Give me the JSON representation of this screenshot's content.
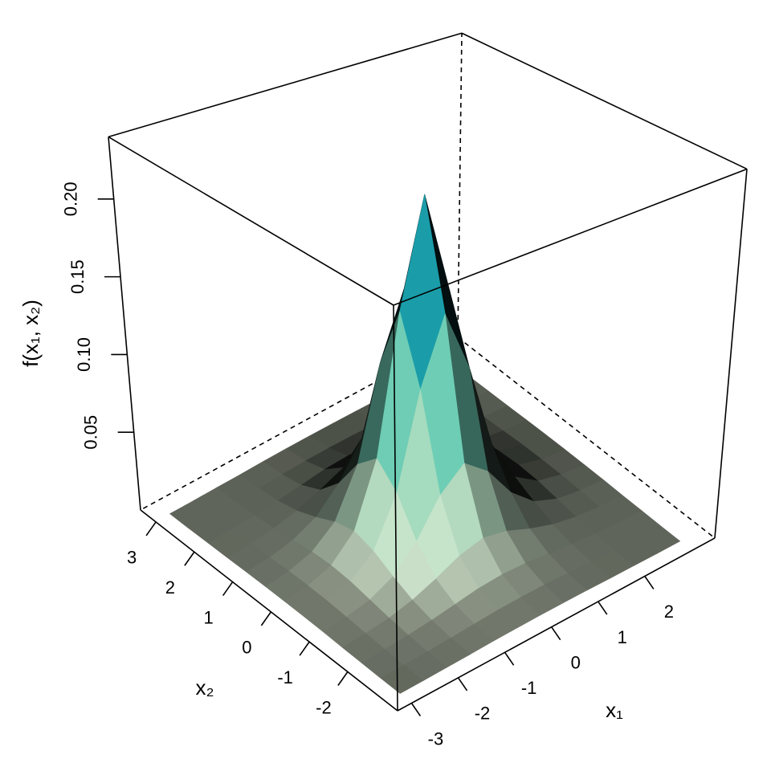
{
  "chart_data": {
    "type": "surface",
    "x_label": "x₁",
    "y_label": "x₂",
    "z_label": "f(x₁, x₂)",
    "x": [
      -3,
      -2.5,
      -2,
      -1.5,
      -1,
      -0.5,
      0,
      0.5,
      1,
      1.5,
      2,
      2.5,
      3
    ],
    "y": [
      -3,
      -2.5,
      -2,
      -1.5,
      -1,
      -0.5,
      0,
      0.5,
      1,
      1.5,
      2,
      2.5,
      3
    ],
    "z": [
      [
        0.0004,
        0.0005,
        0.0008,
        0.001,
        0.0014,
        0.0016,
        0.0017,
        0.0016,
        0.0014,
        0.001,
        0.0008,
        0.0005,
        0.0004
      ],
      [
        0.0005,
        0.0008,
        0.0013,
        0.0019,
        0.0027,
        0.0034,
        0.0036,
        0.0034,
        0.0027,
        0.0019,
        0.0013,
        0.0008,
        0.0005
      ],
      [
        0.0008,
        0.0013,
        0.0022,
        0.0036,
        0.0056,
        0.0077,
        0.0085,
        0.0077,
        0.0056,
        0.0036,
        0.0022,
        0.0013,
        0.0008
      ],
      [
        0.001,
        0.0019,
        0.0036,
        0.0069,
        0.0123,
        0.0189,
        0.0223,
        0.0189,
        0.0123,
        0.0069,
        0.0036,
        0.0019,
        0.001
      ],
      [
        0.0014,
        0.0027,
        0.0056,
        0.0123,
        0.0265,
        0.0483,
        0.0613,
        0.0483,
        0.0265,
        0.0123,
        0.0056,
        0.0027,
        0.0014
      ],
      [
        0.0016,
        0.0034,
        0.0077,
        0.0189,
        0.0483,
        0.1072,
        0.1496,
        0.1072,
        0.0483,
        0.0189,
        0.0077,
        0.0034,
        0.0016
      ],
      [
        0.0017,
        0.0036,
        0.0085,
        0.0223,
        0.0613,
        0.1496,
        0.22,
        0.1496,
        0.0613,
        0.0223,
        0.0085,
        0.0036,
        0.0017
      ],
      [
        0.0016,
        0.0034,
        0.0077,
        0.0189,
        0.0483,
        0.1072,
        0.1496,
        0.1072,
        0.0483,
        0.0189,
        0.0077,
        0.0034,
        0.0016
      ],
      [
        0.0014,
        0.0027,
        0.0056,
        0.0123,
        0.0265,
        0.0483,
        0.0613,
        0.0483,
        0.0265,
        0.0123,
        0.0056,
        0.0027,
        0.0014
      ],
      [
        0.001,
        0.0019,
        0.0036,
        0.0069,
        0.0123,
        0.0189,
        0.0223,
        0.0189,
        0.0123,
        0.0069,
        0.0036,
        0.0019,
        0.001
      ],
      [
        0.0008,
        0.0013,
        0.0022,
        0.0036,
        0.0056,
        0.0077,
        0.0085,
        0.0077,
        0.0056,
        0.0036,
        0.0022,
        0.0013,
        0.0008
      ],
      [
        0.0005,
        0.0008,
        0.0013,
        0.0019,
        0.0027,
        0.0034,
        0.0036,
        0.0034,
        0.0027,
        0.0019,
        0.0013,
        0.0008,
        0.0005
      ],
      [
        0.0004,
        0.0005,
        0.0008,
        0.001,
        0.0014,
        0.0016,
        0.0017,
        0.0016,
        0.0014,
        0.001,
        0.0008,
        0.0005,
        0.0004
      ]
    ],
    "xlim": [
      -3.3,
      3.5
    ],
    "ylim": [
      -3.3,
      3.4
    ],
    "zlim": [
      0,
      0.24
    ],
    "xticks": [
      -3,
      -2,
      -1,
      0,
      1,
      2
    ],
    "yticks": [
      -2,
      -1,
      0,
      1,
      2,
      3
    ],
    "zticks": [
      0.05,
      {
        "value": 0.1,
        "label": "0.10"
      },
      0.15,
      {
        "value": 0.2,
        "label": "0.20"
      }
    ]
  }
}
